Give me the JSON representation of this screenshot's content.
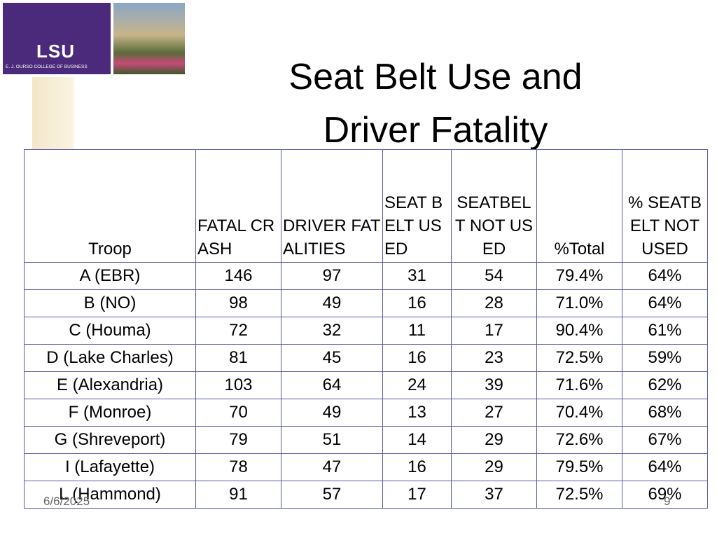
{
  "header": {
    "logo_text": "LSU",
    "logo_subtitle": "E. J. OURSO COLLEGE OF BUSINESS",
    "title_lines": [
      "Seat Belt Use and",
      "Driver Fatality"
    ]
  },
  "table": {
    "columns": [
      "Troop",
      "FATAL CRASH",
      "DRIVER FATALITIES",
      "SEAT BELT USED",
      "SEATBELT NOT USED",
      "%Total",
      "% SEATBELT NOT USED"
    ],
    "rows": [
      [
        "A (EBR)",
        146,
        97,
        31,
        54,
        "79.4%",
        "64%"
      ],
      [
        "B (NO)",
        98,
        49,
        16,
        28,
        "71.0%",
        "64%"
      ],
      [
        "C (Houma)",
        72,
        32,
        11,
        17,
        "90.4%",
        "61%"
      ],
      [
        "D (Lake Charles)",
        81,
        45,
        16,
        23,
        "72.5%",
        "59%"
      ],
      [
        "E (Alexandria)",
        103,
        64,
        24,
        39,
        "71.6%",
        "62%"
      ],
      [
        "F (Monroe)",
        70,
        49,
        13,
        27,
        "70.4%",
        "68%"
      ],
      [
        "G (Shreveport)",
        79,
        51,
        14,
        29,
        "72.6%",
        "67%"
      ],
      [
        "I (Lafayette)",
        78,
        47,
        16,
        29,
        "79.5%",
        "64%"
      ],
      [
        "L (Hammond)",
        91,
        57,
        17,
        37,
        "72.5%",
        "69%"
      ]
    ]
  },
  "footer": {
    "date": "6/6/2025",
    "page": "9"
  }
}
